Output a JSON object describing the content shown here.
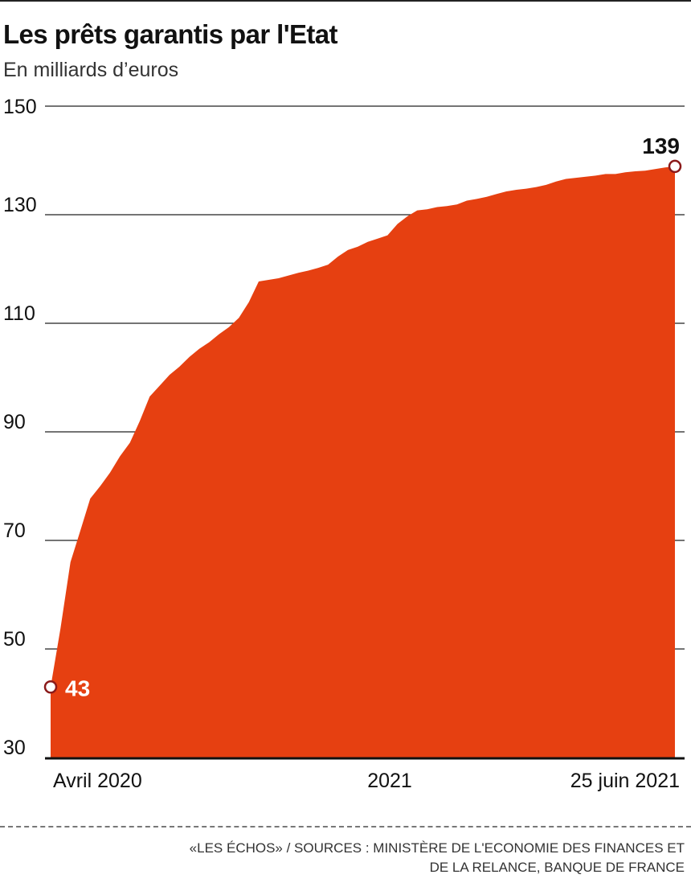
{
  "title": "Les prêts garantis par l'Etat",
  "subtitle": "En milliards d’euros",
  "source_line1": "«LES ÉCHOS» / SOURCES : MINISTÈRE DE L'ECONOMIE DES FINANCES ET",
  "source_line2": "DE LA RELANCE, BANQUE DE FRANCE",
  "colors": {
    "area": "#e64011",
    "marker": "#8b1a1a",
    "gridline": "#222222"
  },
  "chart_data": {
    "type": "area",
    "ylim": [
      30,
      150
    ],
    "y_ticks": [
      30,
      50,
      70,
      90,
      110,
      130,
      150
    ],
    "x_tick_labels": [
      "Avril 2020",
      "2021",
      "25 juin 2021"
    ],
    "start_label": "43",
    "end_label": "139",
    "grid": true,
    "x": [
      0,
      1,
      2,
      3,
      4,
      5,
      6,
      7,
      8,
      9,
      10,
      11,
      12,
      13,
      14,
      15,
      16,
      17,
      18,
      19,
      20,
      21,
      22,
      23,
      24,
      25,
      26,
      27,
      28,
      29,
      30,
      31,
      32,
      33,
      34,
      35,
      36,
      37,
      38,
      39,
      40,
      41,
      42,
      43,
      44,
      45,
      46,
      47,
      48,
      49,
      50,
      51,
      52,
      53,
      54,
      55,
      56,
      57,
      58,
      59,
      60,
      61,
      62,
      63
    ],
    "values": [
      43,
      53.8,
      66,
      71.8,
      77.7,
      80,
      82.5,
      85.5,
      88,
      92,
      96.5,
      98.5,
      100.5,
      102,
      103.8,
      105.3,
      106.5,
      108,
      109.3,
      111,
      113.9,
      117.7,
      118,
      118.3,
      118.8,
      119.3,
      119.7,
      120.2,
      120.8,
      122.3,
      123.5,
      124.1,
      125,
      125.6,
      126.2,
      128.3,
      129.7,
      130.8,
      131,
      131.4,
      131.6,
      131.9,
      132.6,
      132.9,
      133.3,
      133.8,
      134.3,
      134.6,
      134.8,
      135.1,
      135.5,
      136.1,
      136.6,
      136.8,
      137,
      137.2,
      137.5,
      137.5,
      137.8,
      138,
      138.1,
      138.4,
      138.7,
      138.9
    ]
  }
}
